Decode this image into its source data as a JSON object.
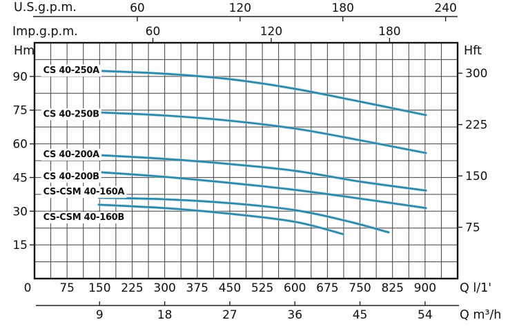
{
  "chart_data": {
    "type": "line",
    "title": "",
    "description": "Pump performance curves: head (Hm / Hft) versus flow (Q) for CS / CS-CSM series pumps",
    "grid": {
      "x_step": 37.5,
      "y_step": 7.5,
      "grid_on": true
    },
    "colors": {
      "curve": "#2e86a6",
      "curve_halo": "#aad6e4",
      "grid": "#3f3f3f",
      "border": "#141414",
      "axis_line": "#222222",
      "text": "#111111"
    },
    "axes": {
      "x_l_min": {
        "unit": "Q l/1'",
        "min": 0,
        "max": 975,
        "ticks": [
          0,
          75,
          150,
          225,
          300,
          375,
          450,
          525,
          600,
          675,
          750,
          825,
          900
        ]
      },
      "x_m3h": {
        "unit": "Q m³/h",
        "min": 0,
        "max": 58.5,
        "ticks": [
          9,
          18,
          27,
          36,
          45,
          54
        ]
      },
      "x_usgpm": {
        "unit": "U.S.g.p.m.",
        "min": 0,
        "max": 247,
        "ticks": [
          60,
          120,
          180,
          240
        ]
      },
      "x_impgpm": {
        "unit": "Imp.g.p.m.",
        "min": 0,
        "max": 214.5,
        "ticks": [
          60,
          120,
          180
        ]
      },
      "y_hm": {
        "unit": "Hm",
        "min": 0,
        "max": 105,
        "ticks": [
          15,
          30,
          45,
          60,
          75,
          90
        ]
      },
      "y_hft": {
        "unit": "Hft",
        "min": 0,
        "max": 344.5,
        "ticks": [
          75,
          150,
          225,
          300
        ]
      }
    },
    "series": [
      {
        "name": "CS 40-250A",
        "label_q": 20,
        "label_h": 93.0,
        "points": [
          [
            148,
            92.5
          ],
          [
            300,
            91.2
          ],
          [
            450,
            88.8
          ],
          [
            600,
            84.5
          ],
          [
            750,
            78.8
          ],
          [
            902,
            72.8
          ]
        ]
      },
      {
        "name": "CS 40-250B",
        "label_q": 20,
        "label_h": 73.6,
        "points": [
          [
            148,
            74.0
          ],
          [
            300,
            72.6
          ],
          [
            450,
            70.3
          ],
          [
            600,
            66.8
          ],
          [
            750,
            61.6
          ],
          [
            902,
            55.9
          ]
        ]
      },
      {
        "name": "CS 40-200A",
        "label_q": 20,
        "label_h": 55.6,
        "points": [
          [
            148,
            55.0
          ],
          [
            300,
            53.3
          ],
          [
            450,
            51.0
          ],
          [
            600,
            48.0
          ],
          [
            750,
            43.2
          ],
          [
            902,
            39.2
          ]
        ]
      },
      {
        "name": "CS 40-200B",
        "label_q": 20,
        "label_h": 45.8,
        "points": [
          [
            148,
            47.4
          ],
          [
            300,
            45.3
          ],
          [
            450,
            42.6
          ],
          [
            600,
            39.5
          ],
          [
            750,
            35.6
          ],
          [
            902,
            31.4
          ]
        ]
      },
      {
        "name": "CS-CSM 40-160A",
        "label_q": 20,
        "label_h": 39.0,
        "points": [
          [
            148,
            36.0
          ],
          [
            300,
            35.3
          ],
          [
            450,
            33.6
          ],
          [
            600,
            30.5
          ],
          [
            716,
            25.8
          ],
          [
            816,
            20.6
          ]
        ]
      },
      {
        "name": "CS-CSM 40-160B",
        "label_q": 20,
        "label_h": 27.6,
        "points": [
          [
            148,
            32.9
          ],
          [
            300,
            31.4
          ],
          [
            450,
            28.9
          ],
          [
            600,
            25.3
          ],
          [
            711,
            19.8
          ]
        ]
      }
    ]
  }
}
